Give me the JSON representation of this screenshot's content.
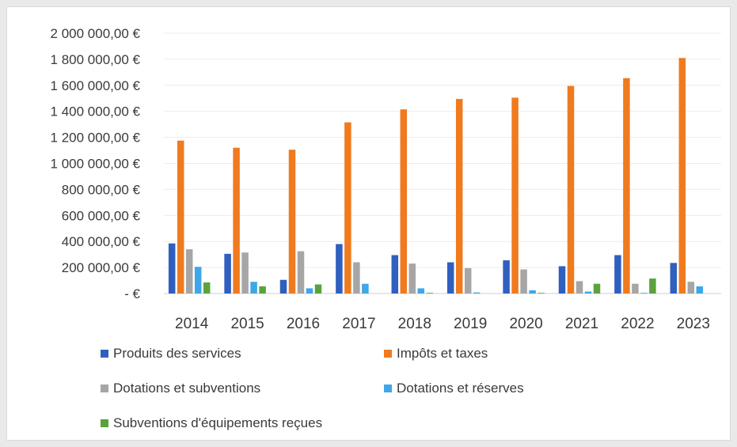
{
  "chart_data": {
    "type": "bar",
    "title": "",
    "xlabel": "",
    "ylabel": "",
    "categories": [
      "2014",
      "2015",
      "2016",
      "2017",
      "2018",
      "2019",
      "2020",
      "2021",
      "2022",
      "2023"
    ],
    "ylim": [
      0,
      2000000
    ],
    "y_ticks": [
      0,
      200000,
      400000,
      600000,
      800000,
      1000000,
      1200000,
      1400000,
      1600000,
      1800000,
      2000000
    ],
    "y_tick_labels": [
      "-   €",
      "200 000,00 €",
      "400 000,00 €",
      "600 000,00 €",
      "800 000,00 €",
      "1 000 000,00 €",
      "1 200 000,00 €",
      "1 400 000,00 €",
      "1 600 000,00 €",
      "1 800 000,00 €",
      "2 000 000,00 €"
    ],
    "grid": true,
    "legend_position": "bottom",
    "series": [
      {
        "name": "Produits des services",
        "color": "#2f5fbf",
        "values": [
          385000,
          305000,
          105000,
          380000,
          295000,
          240000,
          255000,
          210000,
          295000,
          235000
        ]
      },
      {
        "name": "Impôts et taxes",
        "color": "#f07a1e",
        "values": [
          1175000,
          1120000,
          1105000,
          1315000,
          1415000,
          1495000,
          1505000,
          1595000,
          1655000,
          1810000
        ]
      },
      {
        "name": "Dotations et subventions",
        "color": "#a6a6a6",
        "values": [
          340000,
          315000,
          325000,
          240000,
          230000,
          195000,
          185000,
          95000,
          75000,
          90000
        ]
      },
      {
        "name": "Dotations et réserves",
        "color": "#3fa7e8",
        "values": [
          205000,
          90000,
          40000,
          75000,
          40000,
          8000,
          25000,
          15000,
          5000,
          55000
        ]
      },
      {
        "name": "Subventions d'équipements reçues",
        "color": "#5aa33c",
        "values": [
          85000,
          55000,
          70000,
          0,
          5000,
          0,
          5000,
          75000,
          115000,
          0
        ]
      }
    ]
  },
  "legend": {
    "items": [
      "Produits des services",
      "Impôts et taxes",
      "Dotations et subventions",
      "Dotations et réserves",
      "Subventions d'équipements reçues"
    ]
  }
}
